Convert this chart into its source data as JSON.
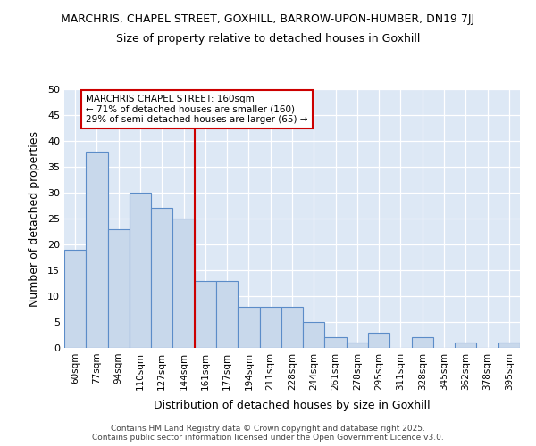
{
  "title1": "MARCHRIS, CHAPEL STREET, GOXHILL, BARROW-UPON-HUMBER, DN19 7JJ",
  "title2": "Size of property relative to detached houses in Goxhill",
  "xlabel": "Distribution of detached houses by size in Goxhill",
  "ylabel": "Number of detached properties",
  "bar_labels": [
    "60sqm",
    "77sqm",
    "94sqm",
    "110sqm",
    "127sqm",
    "144sqm",
    "161sqm",
    "177sqm",
    "194sqm",
    "211sqm",
    "228sqm",
    "244sqm",
    "261sqm",
    "278sqm",
    "295sqm",
    "311sqm",
    "328sqm",
    "345sqm",
    "362sqm",
    "378sqm",
    "395sqm"
  ],
  "bar_values": [
    19,
    38,
    23,
    30,
    27,
    25,
    13,
    13,
    8,
    8,
    8,
    5,
    2,
    1,
    3,
    0,
    2,
    0,
    1,
    0,
    1
  ],
  "bar_color": "#c8d8eb",
  "bar_edge_color": "#5b8cc8",
  "vline_color": "#cc0000",
  "annotation_title": "MARCHRIS CHAPEL STREET: 160sqm",
  "annotation_line1": "← 71% of detached houses are smaller (160)",
  "annotation_line2": "29% of semi-detached houses are larger (65) →",
  "annotation_box_color": "#ffffff",
  "annotation_box_edge": "#cc0000",
  "ylim": [
    0,
    50
  ],
  "yticks": [
    0,
    5,
    10,
    15,
    20,
    25,
    30,
    35,
    40,
    45,
    50
  ],
  "background_color": "#dde8f5",
  "footer1": "Contains HM Land Registry data © Crown copyright and database right 2025.",
  "footer2": "Contains public sector information licensed under the Open Government Licence v3.0."
}
